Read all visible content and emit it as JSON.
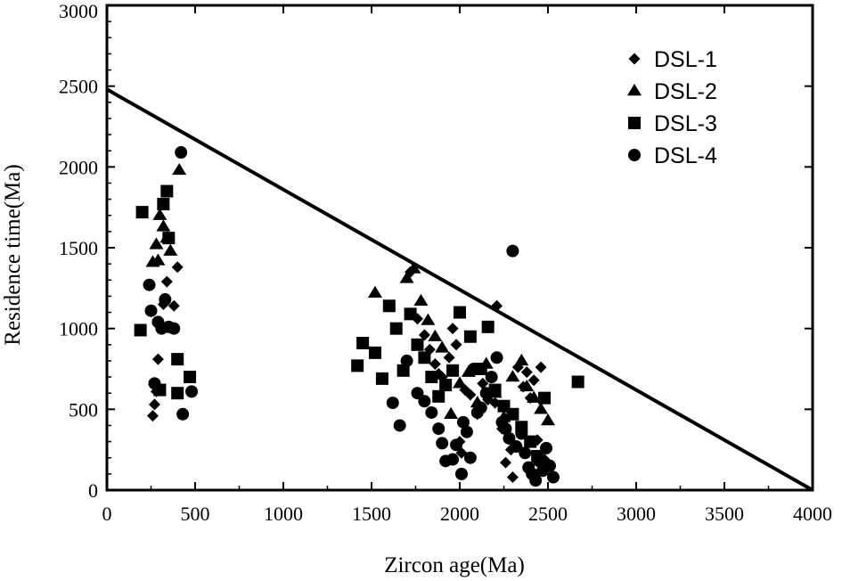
{
  "chart_data": {
    "type": "scatter",
    "title": "",
    "xlabel": "Zircon age(Ma)",
    "ylabel": "Residence time(Ma)",
    "xlim": [
      0,
      4000
    ],
    "ylim": [
      0,
      3000
    ],
    "xticks": [
      0,
      500,
      1000,
      1500,
      2000,
      2500,
      3000,
      3500,
      4000
    ],
    "yticks": [
      0,
      500,
      1000,
      1500,
      2000,
      2500,
      3000
    ],
    "grid": false,
    "legend_position": "top-right",
    "reference_line": {
      "points": [
        [
          0,
          2480
        ],
        [
          4000,
          0
        ]
      ]
    },
    "series": [
      {
        "name": "DSL-1",
        "marker": "diamond",
        "points": [
          [
            260,
            460
          ],
          [
            270,
            530
          ],
          [
            280,
            610
          ],
          [
            290,
            810
          ],
          [
            310,
            1000
          ],
          [
            320,
            1150
          ],
          [
            340,
            1290
          ],
          [
            380,
            1140
          ],
          [
            400,
            1380
          ],
          [
            1720,
            1350
          ],
          [
            1760,
            1060
          ],
          [
            1800,
            960
          ],
          [
            1830,
            870
          ],
          [
            1860,
            780
          ],
          [
            1880,
            720
          ],
          [
            1900,
            700
          ],
          [
            1940,
            820
          ],
          [
            1960,
            1000
          ],
          [
            1980,
            900
          ],
          [
            2000,
            300
          ],
          [
            2010,
            230
          ],
          [
            2030,
            620
          ],
          [
            2060,
            590
          ],
          [
            2100,
            470
          ],
          [
            2130,
            660
          ],
          [
            2160,
            560
          ],
          [
            2200,
            540
          ],
          [
            2210,
            1140
          ],
          [
            2240,
            380
          ],
          [
            2260,
            170
          ],
          [
            2290,
            250
          ],
          [
            2300,
            80
          ],
          [
            2330,
            760
          ],
          [
            2360,
            640
          ],
          [
            2380,
            730
          ],
          [
            2400,
            570
          ],
          [
            2420,
            680
          ],
          [
            2440,
            310
          ],
          [
            2460,
            760
          ],
          [
            2480,
            190
          ]
        ]
      },
      {
        "name": "DSL-2",
        "marker": "triangle",
        "points": [
          [
            260,
            1410
          ],
          [
            280,
            1520
          ],
          [
            290,
            1420
          ],
          [
            300,
            1700
          ],
          [
            320,
            1630
          ],
          [
            340,
            1560
          ],
          [
            360,
            1480
          ],
          [
            410,
            1980
          ],
          [
            1520,
            1220
          ],
          [
            1700,
            1310
          ],
          [
            1740,
            1370
          ],
          [
            1780,
            1170
          ],
          [
            1820,
            1050
          ],
          [
            1860,
            950
          ],
          [
            1900,
            880
          ],
          [
            1950,
            470
          ],
          [
            2000,
            660
          ],
          [
            2050,
            730
          ],
          [
            2100,
            540
          ],
          [
            2150,
            780
          ],
          [
            2200,
            600
          ],
          [
            2250,
            450
          ],
          [
            2300,
            700
          ],
          [
            2350,
            800
          ],
          [
            2380,
            640
          ],
          [
            2420,
            570
          ],
          [
            2460,
            500
          ],
          [
            2500,
            430
          ]
        ]
      },
      {
        "name": "DSL-3",
        "marker": "square",
        "points": [
          [
            190,
            990
          ],
          [
            200,
            1720
          ],
          [
            300,
            620
          ],
          [
            320,
            1770
          ],
          [
            340,
            1850
          ],
          [
            350,
            1560
          ],
          [
            400,
            600
          ],
          [
            400,
            810
          ],
          [
            470,
            700
          ],
          [
            1420,
            770
          ],
          [
            1450,
            910
          ],
          [
            1520,
            850
          ],
          [
            1560,
            690
          ],
          [
            1600,
            1140
          ],
          [
            1640,
            1000
          ],
          [
            1680,
            740
          ],
          [
            1720,
            1090
          ],
          [
            1760,
            900
          ],
          [
            1800,
            820
          ],
          [
            1840,
            700
          ],
          [
            1880,
            580
          ],
          [
            1920,
            650
          ],
          [
            1960,
            740
          ],
          [
            2000,
            1100
          ],
          [
            2060,
            950
          ],
          [
            2120,
            750
          ],
          [
            2160,
            1010
          ],
          [
            2200,
            620
          ],
          [
            2250,
            520
          ],
          [
            2300,
            470
          ],
          [
            2350,
            390
          ],
          [
            2400,
            300
          ],
          [
            2440,
            210
          ],
          [
            2480,
            570
          ],
          [
            2670,
            670
          ]
        ]
      },
      {
        "name": "DSL-4",
        "marker": "circle",
        "points": [
          [
            240,
            1270
          ],
          [
            250,
            1110
          ],
          [
            270,
            660
          ],
          [
            290,
            1040
          ],
          [
            310,
            1000
          ],
          [
            330,
            1180
          ],
          [
            350,
            1010
          ],
          [
            380,
            1000
          ],
          [
            420,
            2090
          ],
          [
            430,
            470
          ],
          [
            480,
            610
          ],
          [
            1620,
            540
          ],
          [
            1660,
            400
          ],
          [
            1700,
            800
          ],
          [
            1760,
            600
          ],
          [
            1800,
            550
          ],
          [
            1840,
            480
          ],
          [
            1880,
            380
          ],
          [
            1900,
            290
          ],
          [
            1920,
            180
          ],
          [
            1960,
            190
          ],
          [
            1980,
            280
          ],
          [
            2010,
            100
          ],
          [
            2020,
            420
          ],
          [
            2040,
            360
          ],
          [
            2060,
            200
          ],
          [
            2080,
            750
          ],
          [
            2100,
            480
          ],
          [
            2120,
            510
          ],
          [
            2150,
            600
          ],
          [
            2180,
            700
          ],
          [
            2210,
            820
          ],
          [
            2240,
            420
          ],
          [
            2260,
            380
          ],
          [
            2280,
            320
          ],
          [
            2300,
            1480
          ],
          [
            2320,
            270
          ],
          [
            2350,
            350
          ],
          [
            2370,
            230
          ],
          [
            2390,
            140
          ],
          [
            2410,
            100
          ],
          [
            2430,
            60
          ],
          [
            2450,
            180
          ],
          [
            2470,
            120
          ],
          [
            2490,
            260
          ],
          [
            2510,
            150
          ],
          [
            2530,
            80
          ]
        ]
      }
    ]
  }
}
